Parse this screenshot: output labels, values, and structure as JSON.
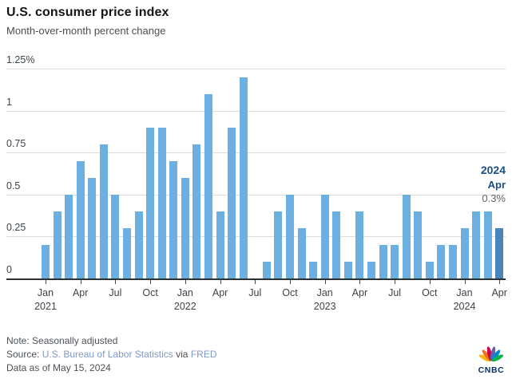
{
  "chart_data": {
    "type": "bar",
    "title": "U.S. consumer price index",
    "subtitle": "Month-over-month percent change",
    "ylabel": "percent change",
    "ylim": [
      0,
      1.25
    ],
    "grid": "horizontal",
    "categories": [
      "Jan 2021",
      "Feb 2021",
      "Mar 2021",
      "Apr 2021",
      "May 2021",
      "Jun 2021",
      "Jul 2021",
      "Aug 2021",
      "Sep 2021",
      "Oct 2021",
      "Nov 2021",
      "Dec 2021",
      "Jan 2022",
      "Feb 2022",
      "Mar 2022",
      "Apr 2022",
      "May 2022",
      "Jun 2022",
      "Jul 2022",
      "Aug 2022",
      "Sep 2022",
      "Oct 2022",
      "Nov 2022",
      "Dec 2022",
      "Jan 2023",
      "Feb 2023",
      "Mar 2023",
      "Apr 2023",
      "May 2023",
      "Jun 2023",
      "Jul 2023",
      "Aug 2023",
      "Sep 2023",
      "Oct 2023",
      "Nov 2023",
      "Dec 2023",
      "Jan 2024",
      "Feb 2024",
      "Mar 2024",
      "Apr 2024"
    ],
    "values": [
      0.2,
      0.4,
      0.5,
      0.7,
      0.6,
      0.8,
      0.5,
      0.3,
      0.4,
      0.9,
      0.9,
      0.7,
      0.6,
      0.8,
      1.1,
      0.4,
      0.9,
      1.2,
      0.0,
      0.1,
      0.4,
      0.5,
      0.3,
      0.1,
      0.5,
      0.4,
      0.1,
      0.4,
      0.1,
      0.2,
      0.2,
      0.5,
      0.4,
      0.1,
      0.2,
      0.2,
      0.3,
      0.4,
      0.4,
      0.3
    ],
    "yticks": [
      {
        "v": 0,
        "label": "0"
      },
      {
        "v": 0.25,
        "label": "0.25"
      },
      {
        "v": 0.5,
        "label": "0.5"
      },
      {
        "v": 0.75,
        "label": "0.75"
      },
      {
        "v": 1,
        "label": "1"
      },
      {
        "v": 1.25,
        "label": "1.25%"
      }
    ],
    "xticks": [
      {
        "i": 0,
        "label": "Jan",
        "year": "2021"
      },
      {
        "i": 3,
        "label": "Apr"
      },
      {
        "i": 6,
        "label": "Jul"
      },
      {
        "i": 9,
        "label": "Oct"
      },
      {
        "i": 12,
        "label": "Jan",
        "year": "2022"
      },
      {
        "i": 15,
        "label": "Apr"
      },
      {
        "i": 18,
        "label": "Jul"
      },
      {
        "i": 21,
        "label": "Oct"
      },
      {
        "i": 24,
        "label": "Jan",
        "year": "2023"
      },
      {
        "i": 27,
        "label": "Apr"
      },
      {
        "i": 30,
        "label": "Jul"
      },
      {
        "i": 33,
        "label": "Oct"
      },
      {
        "i": 36,
        "label": "Jan",
        "year": "2024"
      },
      {
        "i": 39,
        "label": "Apr"
      }
    ],
    "highlight_index": 39,
    "colors": {
      "bar": "#6cb0e2",
      "highlight_bar": "#4a84b8",
      "gridline": "#dcdcdc",
      "axis": "#2d3035"
    }
  },
  "annotation": {
    "year": "2024",
    "month": "Apr",
    "value": "0.3%"
  },
  "footer": {
    "note": "Note: Seasonally adjusted",
    "source_prefix": "Source:",
    "source_link_1": "U.S. Bureau of Labor Statistics",
    "source_connector": "via",
    "source_link_2": "FRED",
    "data_as_of": "Data as of May 15, 2024"
  },
  "logo": {
    "text": "CNBC",
    "peacock_colors": [
      "#fcb711",
      "#f37021",
      "#cc004c",
      "#6460aa",
      "#0089d0",
      "#0db14b"
    ]
  }
}
